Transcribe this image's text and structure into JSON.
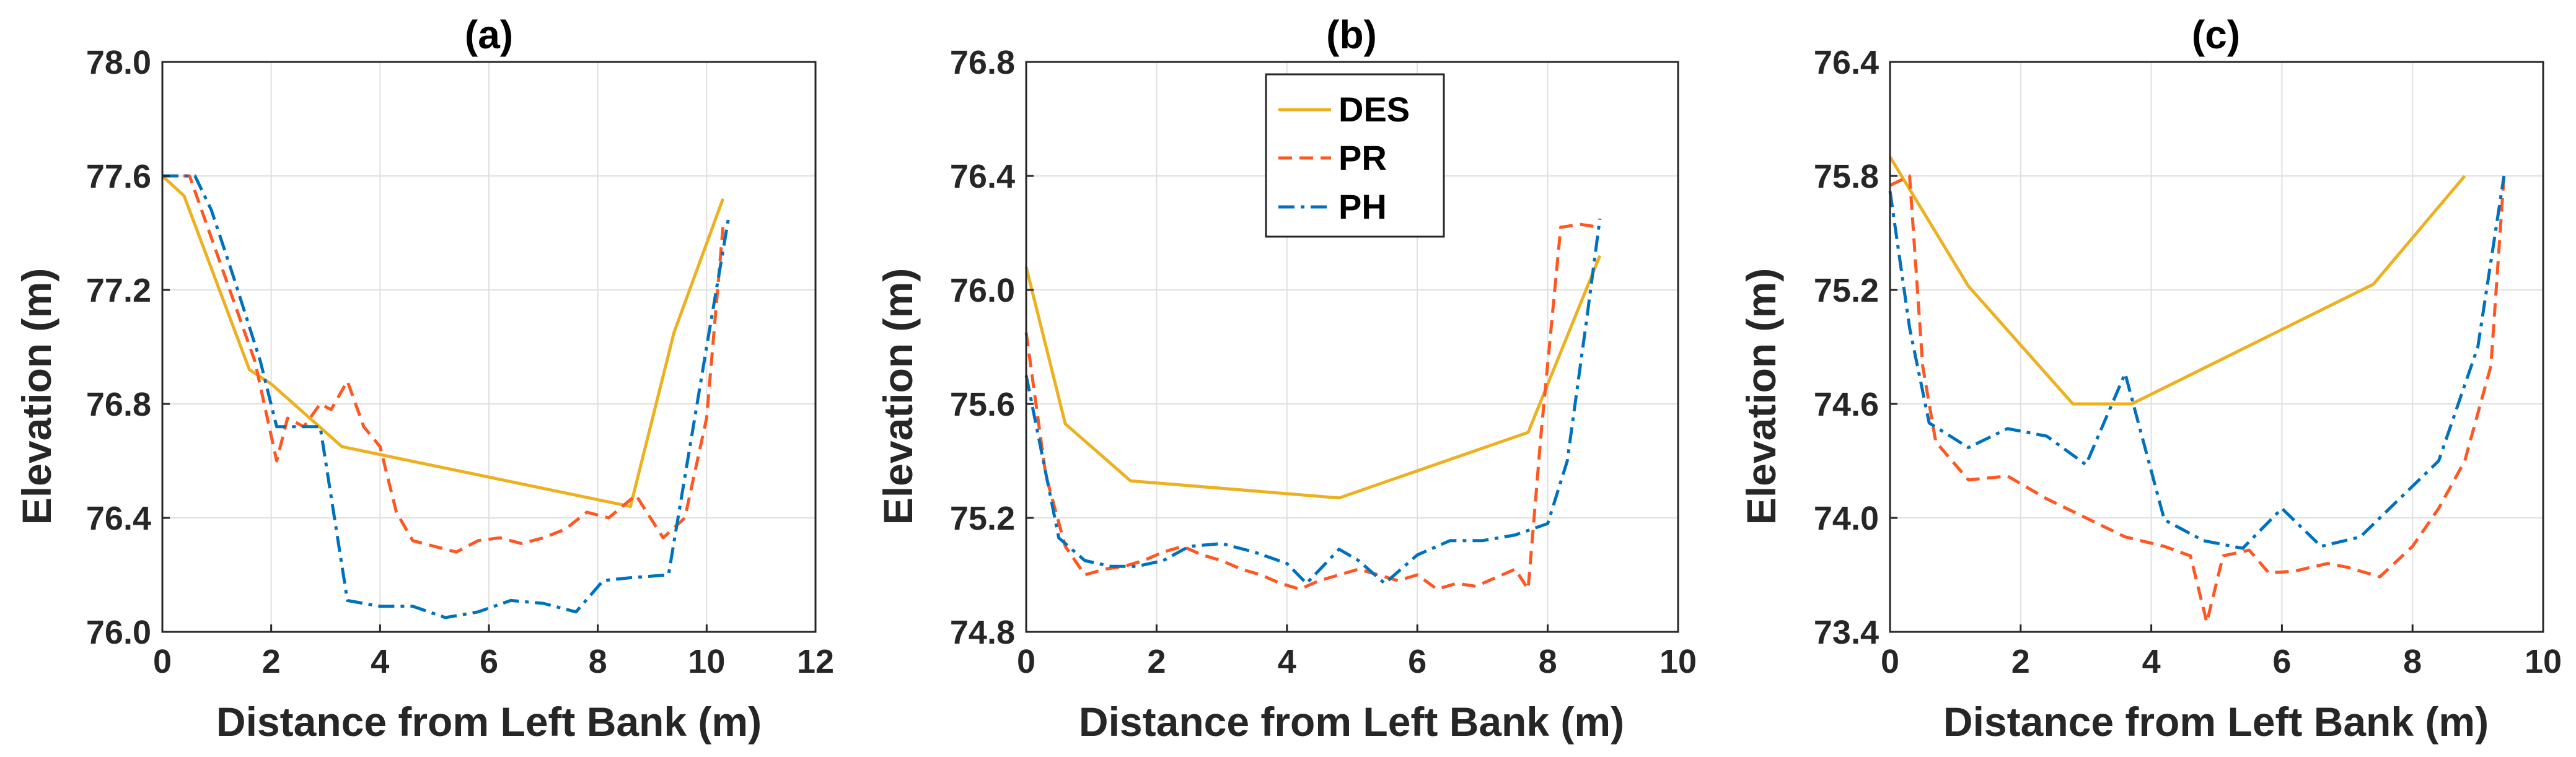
{
  "chart_data": [
    {
      "type": "line",
      "title": "(a)",
      "xlabel": "Distance from Left Bank (m)",
      "ylabel": "Elevation (m)",
      "xlim": [
        0,
        12
      ],
      "ylim": [
        76.0,
        78.0
      ],
      "xticks": [
        0,
        2,
        4,
        6,
        8,
        10,
        12
      ],
      "yticks": [
        76.0,
        76.4,
        76.8,
        77.2,
        77.6,
        78.0
      ],
      "xtick_labels": [
        "0",
        "2",
        "4",
        "6",
        "8",
        "10",
        "12"
      ],
      "ytick_labels": [
        "76.0",
        "76.4",
        "76.8",
        "77.2",
        "77.6",
        "78.0"
      ],
      "grid": true,
      "series": [
        {
          "name": "DES",
          "x": [
            0,
            0.4,
            1.6,
            2.0,
            3.3,
            8.6,
            9.4,
            10.3
          ],
          "y": [
            77.6,
            77.53,
            76.92,
            76.87,
            76.65,
            76.44,
            77.05,
            77.52
          ]
        },
        {
          "name": "PR",
          "x": [
            0,
            0.5,
            1.7,
            2.1,
            2.3,
            2.6,
            2.9,
            3.1,
            3.4,
            3.7,
            4.0,
            4.3,
            4.6,
            5.0,
            5.4,
            5.8,
            6.2,
            6.6,
            7.0,
            7.4,
            7.8,
            8.2,
            8.7,
            9.2,
            9.6,
            10.0,
            10.3
          ],
          "y": [
            77.6,
            77.6,
            76.95,
            76.6,
            76.75,
            76.72,
            76.8,
            76.78,
            76.88,
            76.72,
            76.65,
            76.42,
            76.32,
            76.3,
            76.28,
            76.32,
            76.33,
            76.31,
            76.33,
            76.36,
            76.42,
            76.4,
            76.48,
            76.33,
            76.4,
            76.75,
            77.42
          ]
        },
        {
          "name": "PH",
          "x": [
            0,
            0.6,
            0.9,
            1.3,
            1.8,
            2.1,
            2.5,
            2.9,
            3.4,
            4.0,
            4.6,
            5.2,
            5.8,
            6.4,
            7.0,
            7.6,
            8.1,
            8.6,
            9.3,
            10.0,
            10.4
          ],
          "y": [
            77.6,
            77.6,
            77.48,
            77.25,
            76.95,
            76.72,
            76.72,
            76.72,
            76.11,
            76.09,
            76.09,
            76.05,
            76.07,
            76.11,
            76.1,
            76.07,
            76.18,
            76.19,
            76.2,
            77.0,
            77.45
          ]
        }
      ]
    },
    {
      "type": "line",
      "title": "(b)",
      "xlabel": "Distance from Left Bank (m)",
      "ylabel": "Elevation (m)",
      "xlim": [
        0,
        10
      ],
      "ylim": [
        74.8,
        76.8
      ],
      "xticks": [
        0,
        2,
        4,
        6,
        8,
        10
      ],
      "yticks": [
        74.8,
        75.2,
        75.6,
        76.0,
        76.4,
        76.8
      ],
      "xtick_labels": [
        "0",
        "2",
        "4",
        "6",
        "8",
        "10"
      ],
      "ytick_labels": [
        "74.8",
        "75.2",
        "75.6",
        "76.0",
        "76.4",
        "76.8"
      ],
      "grid": true,
      "legend": {
        "position": "top-center",
        "entries": [
          "DES",
          "PR",
          "PH"
        ]
      },
      "series": [
        {
          "name": "DES",
          "x": [
            0,
            0.6,
            1.6,
            4.8,
            7.7,
            8.8
          ],
          "y": [
            76.08,
            75.53,
            75.33,
            75.27,
            75.5,
            76.12
          ]
        },
        {
          "name": "PR",
          "x": [
            0,
            0.3,
            0.6,
            0.9,
            1.2,
            1.5,
            1.8,
            2.1,
            2.4,
            2.7,
            3.0,
            3.3,
            3.6,
            3.9,
            4.2,
            4.5,
            4.8,
            5.1,
            5.4,
            5.7,
            6.0,
            6.3,
            6.6,
            6.9,
            7.2,
            7.5,
            7.7,
            7.9,
            8.2,
            8.5,
            8.8
          ],
          "y": [
            75.85,
            75.35,
            75.1,
            75.0,
            75.02,
            75.03,
            75.05,
            75.08,
            75.1,
            75.07,
            75.05,
            75.02,
            75.0,
            74.97,
            74.95,
            74.98,
            75.0,
            75.02,
            75.0,
            74.98,
            75.0,
            74.95,
            74.97,
            74.96,
            74.99,
            75.02,
            74.95,
            75.5,
            76.22,
            76.23,
            76.22
          ]
        },
        {
          "name": "PH",
          "x": [
            0,
            0.5,
            0.9,
            1.3,
            1.7,
            2.1,
            2.5,
            3.0,
            3.5,
            4.0,
            4.3,
            4.8,
            5.1,
            5.5,
            6.0,
            6.5,
            7.0,
            7.5,
            8.0,
            8.3,
            8.6,
            8.8
          ],
          "y": [
            75.7,
            75.13,
            75.05,
            75.03,
            75.03,
            75.05,
            75.1,
            75.11,
            75.08,
            75.04,
            74.97,
            75.09,
            75.05,
            74.97,
            75.07,
            75.12,
            75.12,
            75.14,
            75.18,
            75.4,
            75.9,
            76.25
          ]
        }
      ]
    },
    {
      "type": "line",
      "title": "(c)",
      "xlabel": "Distance from Left Bank (m)",
      "ylabel": "Elevation (m)",
      "xlim": [
        0,
        10
      ],
      "ylim": [
        73.4,
        76.4
      ],
      "xticks": [
        0,
        2,
        4,
        6,
        8,
        10
      ],
      "yticks": [
        73.4,
        74.0,
        74.6,
        75.2,
        75.8,
        76.4
      ],
      "xtick_labels": [
        "0",
        "2",
        "4",
        "6",
        "8",
        "10"
      ],
      "ytick_labels": [
        "73.4",
        "74.0",
        "74.6",
        "75.2",
        "75.8",
        "76.4"
      ],
      "grid": true,
      "series": [
        {
          "name": "DES",
          "x": [
            0,
            1.2,
            2.8,
            3.7,
            7.4,
            8.8
          ],
          "y": [
            75.9,
            75.22,
            74.6,
            74.6,
            75.23,
            75.8
          ]
        },
        {
          "name": "PR",
          "x": [
            0,
            0.3,
            0.5,
            0.7,
            1.2,
            1.8,
            2.4,
            3.0,
            3.6,
            4.2,
            4.6,
            4.85,
            5.1,
            5.5,
            5.8,
            6.2,
            6.7,
            7.0,
            7.5,
            8.0,
            8.4,
            8.8,
            9.2,
            9.4
          ],
          "y": [
            75.75,
            75.8,
            74.8,
            74.4,
            74.2,
            74.22,
            74.1,
            74.0,
            73.9,
            73.85,
            73.8,
            73.45,
            73.8,
            73.83,
            73.71,
            73.72,
            73.76,
            73.74,
            73.69,
            73.85,
            74.05,
            74.3,
            74.8,
            75.8
          ]
        },
        {
          "name": "PH",
          "x": [
            0,
            0.3,
            0.6,
            1.2,
            1.8,
            2.4,
            3.0,
            3.6,
            4.2,
            4.8,
            5.4,
            6.0,
            6.6,
            7.2,
            7.8,
            8.4,
            9.0,
            9.4
          ],
          "y": [
            75.72,
            75.0,
            74.5,
            74.37,
            74.47,
            74.43,
            74.28,
            74.76,
            73.99,
            73.88,
            73.84,
            74.05,
            73.85,
            73.9,
            74.1,
            74.3,
            74.9,
            75.8
          ]
        }
      ]
    }
  ],
  "series_colors": {
    "DES": "#EDB120",
    "PR": "#FF5722",
    "PH": "#0072BD"
  }
}
